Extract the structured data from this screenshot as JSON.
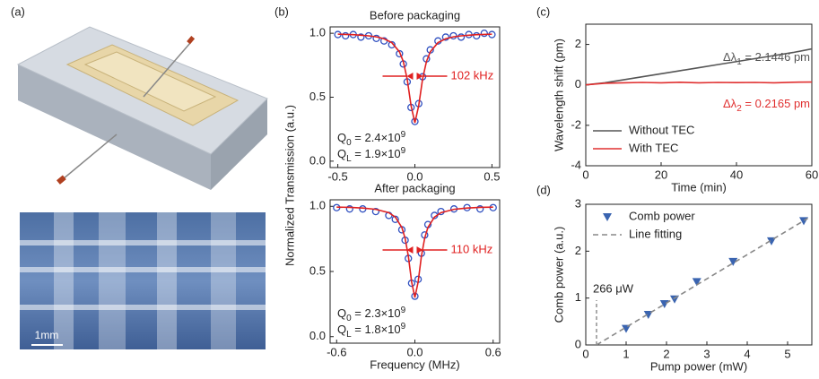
{
  "images": {
    "panel": "(a)",
    "scale_bar": "1mm"
  },
  "chart_data": [
    {
      "type": "line",
      "panel": "(b)",
      "title": "Before packaging",
      "ylabel": "Normalized Transmission (a.u.)",
      "xlim": [
        -0.55,
        0.55
      ],
      "ylim": [
        -0.05,
        1.05
      ],
      "xticks": [
        -0.5,
        {
          "value": 0,
          "label": "0.0"
        },
        0.5
      ],
      "yticks": [
        {
          "value": 0,
          "label": "0.0"
        },
        0.5,
        {
          "value": 1,
          "label": "1.0"
        }
      ],
      "x": [
        -0.5,
        -0.45,
        -0.4,
        -0.35,
        -0.3,
        -0.25,
        -0.2,
        -0.15,
        -0.1,
        -0.075,
        -0.05,
        -0.025,
        0,
        0.025,
        0.05,
        0.075,
        0.1,
        0.15,
        0.2,
        0.25,
        0.3,
        0.35,
        0.4,
        0.45,
        0.5
      ],
      "series": [
        {
          "style": "open-circle",
          "color": "#3050c0",
          "values": [
            0.99,
            0.98,
            0.99,
            0.97,
            0.98,
            0.96,
            0.94,
            0.91,
            0.84,
            0.76,
            0.62,
            0.42,
            0.31,
            0.45,
            0.66,
            0.8,
            0.87,
            0.94,
            0.97,
            0.98,
            0.97,
            0.99,
            0.98,
            1.0,
            0.99
          ]
        },
        {
          "style": "line",
          "color": "#e02020",
          "values": [
            0.993,
            0.991,
            0.989,
            0.985,
            0.98,
            0.972,
            0.957,
            0.927,
            0.855,
            0.779,
            0.643,
            0.435,
            0.3,
            0.435,
            0.643,
            0.779,
            0.855,
            0.927,
            0.957,
            0.972,
            0.98,
            0.985,
            0.989,
            0.991,
            0.993
          ]
        }
      ],
      "linewidth": "102 kHz",
      "q_factors": [
        {
          "symbol": "Q",
          "sub": "0",
          "text": " = 2.4×10",
          "sup": "9"
        },
        {
          "symbol": "Q",
          "sub": "L",
          "text": " = 1.9×10",
          "sup": "9"
        }
      ]
    },
    {
      "type": "line",
      "title": "After packaging",
      "xlabel": "Frequency (MHz)",
      "xlim": [
        -0.65,
        0.65
      ],
      "ylim": [
        -0.05,
        1.05
      ],
      "xticks": [
        -0.6,
        {
          "value": 0,
          "label": "0.0"
        },
        0.6
      ],
      "yticks": [
        {
          "value": 0,
          "label": "0.0"
        },
        0.5,
        {
          "value": 1,
          "label": "1.0"
        }
      ],
      "x": [
        -0.6,
        -0.5,
        -0.4,
        -0.3,
        -0.2,
        -0.15,
        -0.1,
        -0.075,
        -0.05,
        -0.025,
        0,
        0.025,
        0.05,
        0.075,
        0.1,
        0.15,
        0.2,
        0.3,
        0.4,
        0.5,
        0.6
      ],
      "series": [
        {
          "style": "open-circle",
          "color": "#3050c0",
          "values": [
            0.99,
            0.98,
            0.98,
            0.96,
            0.93,
            0.9,
            0.82,
            0.74,
            0.6,
            0.41,
            0.31,
            0.44,
            0.64,
            0.78,
            0.86,
            0.93,
            0.96,
            0.98,
            0.99,
            0.98,
            0.99
          ]
        },
        {
          "style": "line",
          "color": "#e02020",
          "values": [
            0.994,
            0.992,
            0.987,
            0.977,
            0.951,
            0.917,
            0.838,
            0.755,
            0.617,
            0.42,
            0.3,
            0.42,
            0.617,
            0.755,
            0.838,
            0.917,
            0.951,
            0.977,
            0.987,
            0.992,
            0.994
          ]
        }
      ],
      "linewidth": "110 kHz",
      "q_factors": [
        {
          "symbol": "Q",
          "sub": "0",
          "text": " = 2.3×10",
          "sup": "9"
        },
        {
          "symbol": "Q",
          "sub": "L",
          "text": " = 1.8×10",
          "sup": "9"
        }
      ]
    },
    {
      "type": "line",
      "panel": "(c)",
      "ylabel": "Wavelength shift (pm)",
      "xlabel": "Time (min)",
      "xlim": [
        0,
        60
      ],
      "ylim": [
        -4,
        3
      ],
      "xticks": [
        0,
        20,
        40,
        60
      ],
      "yticks": [
        -4,
        -2,
        0,
        2
      ],
      "legend": "lower left",
      "x": [
        0,
        5,
        10,
        15,
        20,
        25,
        30,
        35,
        40,
        45,
        50,
        55,
        60
      ],
      "series": [
        {
          "name": "Without TEC",
          "style": "line",
          "color": "#555555",
          "values": [
            0,
            0.1,
            0.25,
            0.4,
            0.55,
            0.7,
            0.85,
            1.0,
            1.15,
            1.3,
            1.45,
            1.6,
            1.78
          ]
        },
        {
          "name": "With TEC",
          "style": "line",
          "color": "#e03030",
          "values": [
            0,
            0.08,
            0.1,
            0.12,
            0.1,
            0.13,
            0.1,
            0.12,
            0.11,
            0.12,
            0.1,
            0.13,
            0.14
          ]
        }
      ],
      "shifts": [
        {
          "symbol": "Δλ",
          "sub": "1",
          "text": " = 2.1446 pm"
        },
        {
          "symbol": "Δλ",
          "sub": "2",
          "text": " = 0.2165 pm"
        }
      ]
    },
    {
      "type": "scatter",
      "panel": "(d)",
      "ylabel": "Comb power (a.u.)",
      "xlabel": "Pump power (mW)",
      "xlim": [
        0,
        5.6
      ],
      "ylim": [
        0,
        3
      ],
      "xticks": [
        0,
        1,
        2,
        3,
        4,
        5
      ],
      "yticks": [
        0,
        1,
        2,
        3
      ],
      "legend": "upper left",
      "series": [
        {
          "name": "Comb power",
          "style": "triangle-down",
          "color": "#3a64b0",
          "x": [
            1,
            1.55,
            1.95,
            2.2,
            2.75,
            3.65,
            4.6,
            5.4
          ],
          "values": [
            0.35,
            0.65,
            0.88,
            0.98,
            1.35,
            1.78,
            2.22,
            2.65
          ]
        },
        {
          "name": "Line fitting",
          "style": "dashed",
          "color": "#888888",
          "x": [
            0.266,
            5.5
          ],
          "values": [
            0,
            2.7
          ]
        }
      ],
      "threshold_label": "266 μW"
    }
  ]
}
